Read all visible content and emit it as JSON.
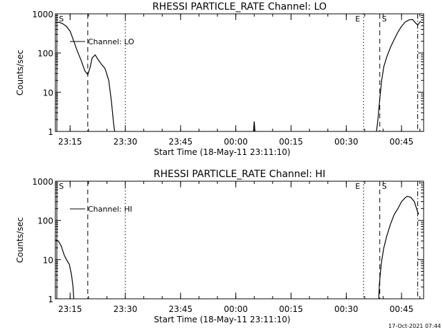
{
  "footer": {
    "timestamp": "17-Oct-2021 07:44"
  },
  "chart_data": [
    {
      "type": "line",
      "title": "RHESSI PARTICLE_RATE Channel: LO",
      "xlabel": "Start Time (18-May-11 23:11:10)",
      "ylabel": "Counts/sec",
      "yscale": "log",
      "ylim": [
        1,
        1000
      ],
      "xlim_minutes": [
        0,
        100
      ],
      "x_ticks": [
        {
          "t": 4,
          "label": "23:15"
        },
        {
          "t": 19,
          "label": "23:30"
        },
        {
          "t": 34,
          "label": "23:45"
        },
        {
          "t": 49,
          "label": "00:00"
        },
        {
          "t": 64,
          "label": "00:15"
        },
        {
          "t": 79,
          "label": "00:30"
        },
        {
          "t": 94,
          "label": "00:45"
        }
      ],
      "y_ticks": [
        {
          "v": 1,
          "label": "1"
        },
        {
          "v": 10,
          "label": "10"
        },
        {
          "v": 100,
          "label": "100"
        },
        {
          "v": 1000,
          "label": "1000"
        }
      ],
      "legend": {
        "label": "Channel: LO",
        "position": "top-left"
      },
      "markers": [
        {
          "t": 0.4,
          "style": "solid",
          "label": "S"
        },
        {
          "t": 8.8,
          "style": "dashed",
          "label": ""
        },
        {
          "t": 19.0,
          "style": "dotted",
          "label": ""
        },
        {
          "t": 83.7,
          "style": "dotted",
          "label": "E"
        },
        {
          "t": 88.1,
          "style": "dashed",
          "label": "S"
        },
        {
          "t": 98.4,
          "style": "dashdot",
          "label": ""
        }
      ],
      "series": [
        {
          "name": "Channel: LO",
          "segments": [
            [
              [
                0,
                600
              ],
              [
                1,
                610
              ],
              [
                2,
                560
              ],
              [
                3,
                480
              ],
              [
                4,
                360
              ],
              [
                5,
                200
              ],
              [
                6,
                110
              ],
              [
                7,
                65
              ],
              [
                8,
                35
              ],
              [
                8.8,
                28
              ],
              [
                9.4,
                42
              ],
              [
                10,
                75
              ],
              [
                10.8,
                90
              ],
              [
                11.5,
                70
              ],
              [
                12.5,
                52
              ],
              [
                13.5,
                40
              ],
              [
                14.5,
                20
              ],
              [
                15.2,
                6
              ],
              [
                15.8,
                1.6
              ],
              [
                16.1,
                1
              ]
            ],
            [
              [
                53.8,
                1
              ],
              [
                54.0,
                1.8
              ],
              [
                54.2,
                1
              ]
            ],
            [
              [
                87.2,
                1
              ],
              [
                87.6,
                2
              ],
              [
                88.1,
                7
              ],
              [
                88.6,
                20
              ],
              [
                89.2,
                45
              ],
              [
                90,
                80
              ],
              [
                91,
                140
              ],
              [
                92,
                220
              ],
              [
                93,
                340
              ],
              [
                94,
                480
              ],
              [
                95,
                620
              ],
              [
                96,
                700
              ],
              [
                97,
                720
              ],
              [
                98,
                560
              ],
              [
                98.4,
                520
              ],
              [
                99,
                620
              ],
              [
                99.3,
                640
              ]
            ]
          ]
        }
      ]
    },
    {
      "type": "line",
      "title": "RHESSI PARTICLE_RATE Channel: HI",
      "xlabel": "Start Time (18-May-11 23:11:10)",
      "ylabel": "Counts/sec",
      "yscale": "log",
      "ylim": [
        1,
        1000
      ],
      "xlim_minutes": [
        0,
        100
      ],
      "x_ticks": [
        {
          "t": 4,
          "label": "23:15"
        },
        {
          "t": 19,
          "label": "23:30"
        },
        {
          "t": 34,
          "label": "23:45"
        },
        {
          "t": 49,
          "label": "00:00"
        },
        {
          "t": 64,
          "label": "00:15"
        },
        {
          "t": 79,
          "label": "00:30"
        },
        {
          "t": 94,
          "label": "00:45"
        }
      ],
      "y_ticks": [
        {
          "v": 1,
          "label": "1"
        },
        {
          "v": 10,
          "label": "10"
        },
        {
          "v": 100,
          "label": "100"
        },
        {
          "v": 1000,
          "label": "1000"
        }
      ],
      "legend": {
        "label": "Channel: HI",
        "position": "top-left"
      },
      "markers": [
        {
          "t": 0.4,
          "style": "solid",
          "label": "S"
        },
        {
          "t": 8.8,
          "style": "dashed",
          "label": ""
        },
        {
          "t": 19.0,
          "style": "dotted",
          "label": ""
        },
        {
          "t": 83.7,
          "style": "dotted",
          "label": "E"
        },
        {
          "t": 88.1,
          "style": "dashed",
          "label": "S"
        },
        {
          "t": 98.4,
          "style": "dashdot",
          "label": ""
        }
      ],
      "series": [
        {
          "name": "Channel: HI",
          "segments": [
            [
              [
                0,
                32
              ],
              [
                0.8,
                30
              ],
              [
                1.6,
                22
              ],
              [
                2.4,
                13
              ],
              [
                3,
                10
              ],
              [
                3.8,
                7.5
              ],
              [
                4.4,
                4
              ],
              [
                4.8,
                2
              ],
              [
                5.0,
                1
              ]
            ],
            [
              [
                87.8,
                1
              ],
              [
                88.0,
                2.5
              ],
              [
                88.5,
                8
              ],
              [
                89.2,
                20
              ],
              [
                90,
                40
              ],
              [
                91,
                80
              ],
              [
                92,
                140
              ],
              [
                93,
                200
              ],
              [
                94,
                300
              ],
              [
                95,
                380
              ],
              [
                95.5,
                410
              ],
              [
                96.5,
                390
              ],
              [
                97.5,
                300
              ],
              [
                98.4,
                160
              ],
              [
                98.7,
                145
              ]
            ]
          ]
        }
      ]
    }
  ]
}
